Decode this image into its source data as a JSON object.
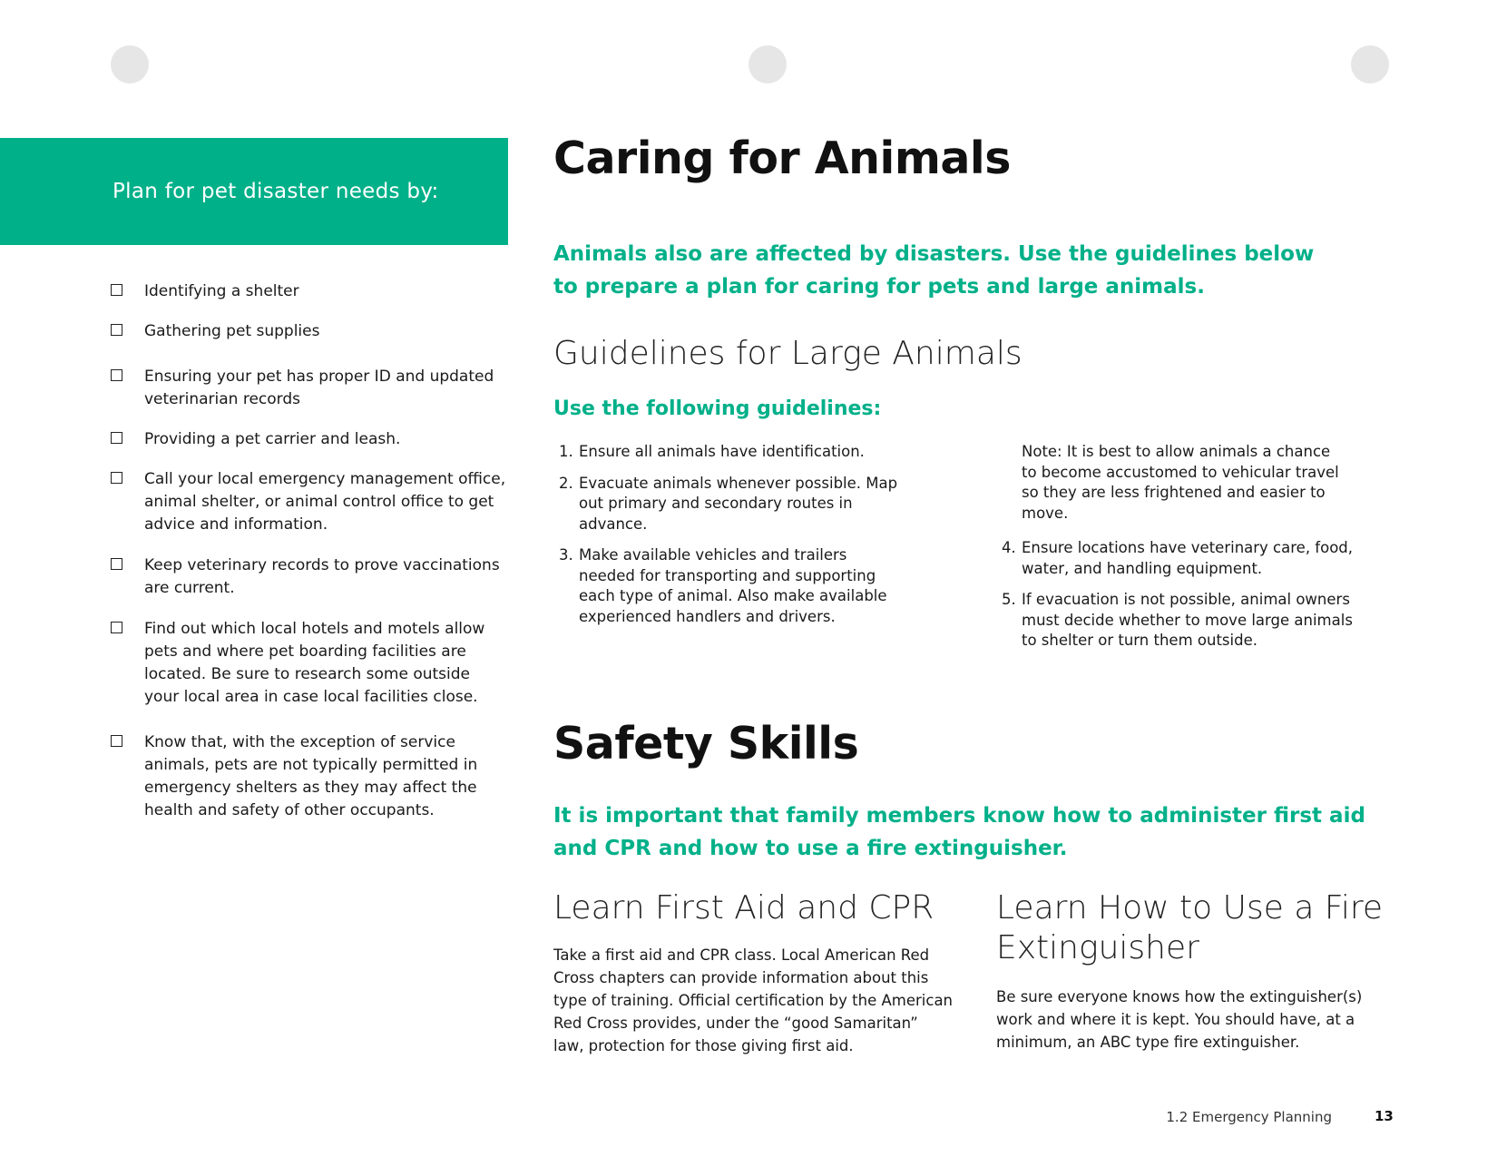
{
  "sidebar": {
    "header": "Plan for pet disaster needs by:",
    "items": [
      "Identifying a shelter",
      "Gathering pet supplies",
      "Ensuring your pet has proper ID and updated veterinarian records",
      "Providing a pet carrier and leash.",
      "Call your local emergency management office, animal shelter, or animal control office to get advice and information.",
      "Keep veterinary records to prove vaccinations are current.",
      "Find out which local hotels and motels allow pets and where pet boarding facilities are located. Be sure to research some outside your local area in case local facilities close.",
      "Know that, with the exception of service animals, pets are not typically permitted in emergency shelters as they may affect the health and safety of other occupants."
    ]
  },
  "caring": {
    "title": "Caring for Animals",
    "lead": "Animals also are affected by disasters. Use the guidelines below to prepare a plan for caring for pets and large animals.",
    "large_title": "Guidelines for Large Animals",
    "subhead": "Use the following guidelines:",
    "list_left": [
      {
        "num": "1.",
        "text": "Ensure all animals have identification."
      },
      {
        "num": "2.",
        "text": "Evacuate animals whenever possible. Map out primary and secondary routes in advance."
      },
      {
        "num": "3.",
        "text": "Make available vehicles and trailers needed for transporting and supporting each type of animal. Also make available experienced handlers and drivers."
      }
    ],
    "note": "Note: It is best to allow animals a chance to become accustomed to vehicular travel so they are less frightened and easier to move.",
    "list_right": [
      {
        "num": "4.",
        "text": "Ensure locations have veterinary care, food, water, and handling equipment."
      },
      {
        "num": "5.",
        "text": "If evacuation is not possible, animal owners must decide whether to move large animals to shelter or turn them outside."
      }
    ]
  },
  "safety": {
    "title": "Safety Skills",
    "lead": "It is important that family members know how to administer first aid and CPR and how to use a fire extinguisher.",
    "first_aid_title": "Learn First Aid and CPR",
    "first_aid_text": "Take a first aid and CPR class. Local American Red Cross chapters can provide information about this type of training. Official certification by the American Red Cross provides, under the “good Samaritan” law, protection for those giving first aid.",
    "fire_title": "Learn How to Use a Fire Extinguisher",
    "fire_text": "Be sure everyone knows how the extinguisher(s) work and where it is kept. You should have, at a minimum, an ABC type fire extinguisher."
  },
  "footer": {
    "section": "1.2  Emergency Planning",
    "page": "13"
  }
}
